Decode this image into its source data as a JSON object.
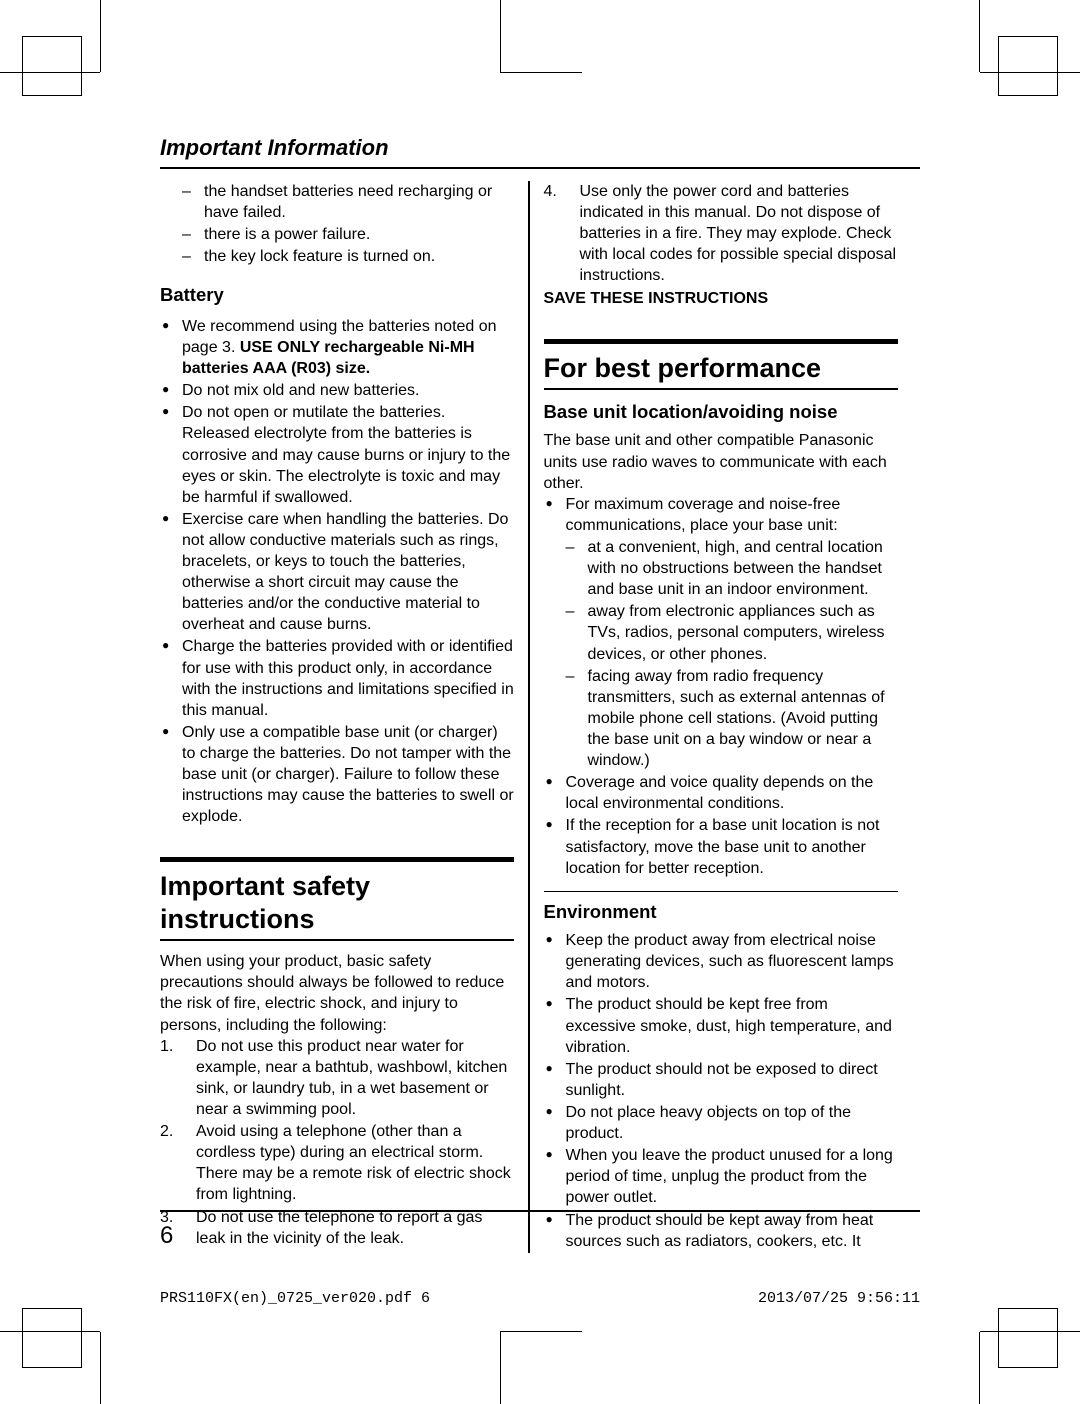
{
  "header": {
    "title": "Important Information"
  },
  "colLeft": {
    "introDashes": [
      "the handset batteries need recharging or have failed.",
      "there is a power failure.",
      "the key lock feature is turned on."
    ],
    "batteryHeading": "Battery",
    "batteryBullets": [
      "We recommend using the batteries noted on page 3. <b>USE ONLY rechargeable Ni-MH batteries AAA (R03) size.</b>",
      "Do not mix old and new batteries.",
      "Do not open or mutilate the batteries. Released electrolyte from the batteries is corrosive and may cause burns or injury to the eyes or skin. The electrolyte is toxic and may be harmful if swallowed.",
      "Exercise care when handling the batteries. Do not allow conductive materials such as rings, bracelets, or keys to touch the batteries, otherwise a short circuit may cause the batteries and/or the conductive material to overheat and cause burns.",
      "Charge the batteries provided with or identified for use with this product only, in accordance with the instructions and limitations specified in this manual.",
      "Only use a compatible base unit (or charger) to charge the batteries. Do not tamper with the base unit (or charger). Failure to follow these instructions may cause the batteries to swell or explode."
    ],
    "safetyHeading": "Important safety instructions",
    "safetyIntro": "When using your product, basic safety precautions should always be followed to reduce the risk of fire, electric shock, and injury to persons, including the following:",
    "safetyNums": [
      {
        "n": "1.",
        "t": "Do not use this product near water for example, near a bathtub, washbowl, kitchen sink, or laundry tub, in a wet basement or near a swimming pool."
      },
      {
        "n": "2.",
        "t": "Avoid using a telephone (other than a cordless type) during an electrical storm. There may be a remote risk of electric shock from lightning."
      },
      {
        "n": "3.",
        "t": "Do not use the telephone to report a gas leak in the vicinity of the leak."
      }
    ]
  },
  "colRight": {
    "topNum": {
      "n": "4.",
      "t": "Use only the power cord and batteries indicated in this manual. Do not dispose of batteries in a fire. They may explode. Check with local codes for possible special disposal instructions."
    },
    "saveThese": "SAVE THESE INSTRUCTIONS",
    "perfHeading": "For best performance",
    "baseHeading": "Base unit location/avoiding noise",
    "baseIntro": "The base unit and other compatible Panasonic units use radio waves to communicate with each other.",
    "baseBullets": [
      "For maximum coverage and noise-free communications, place your base unit:"
    ],
    "baseSubDashes": [
      "at a convenient, high, and central location with no obstructions between the handset and base unit in an indoor environment.",
      "away from electronic appliances such as TVs, radios, personal computers, wireless devices, or other phones.",
      "facing away from radio frequency transmitters, such as external antennas of mobile phone cell stations. (Avoid putting the base unit on a bay window or near a window.)"
    ],
    "baseBullets2": [
      "Coverage and voice quality depends on the local environmental conditions.",
      "If the reception for a base unit location is not satisfactory, move the base unit to another location for better reception."
    ],
    "envHeading": "Environment",
    "envBullets": [
      "Keep the product away from electrical noise generating devices, such as fluorescent lamps and motors.",
      "The product should be kept free from excessive smoke, dust, high temperature, and vibration.",
      "The product should not be exposed to direct sunlight.",
      "Do not place heavy objects on top of the product.",
      "When you leave the product unused for a long period of time, unplug the product from the power outlet.",
      "The product should be kept away from heat sources such as radiators, cookers, etc. It"
    ]
  },
  "pageNumber": "6",
  "footer": {
    "left": "PRS110FX(en)_0725_ver020.pdf   6",
    "right": "2013/07/25   9:56:11"
  }
}
